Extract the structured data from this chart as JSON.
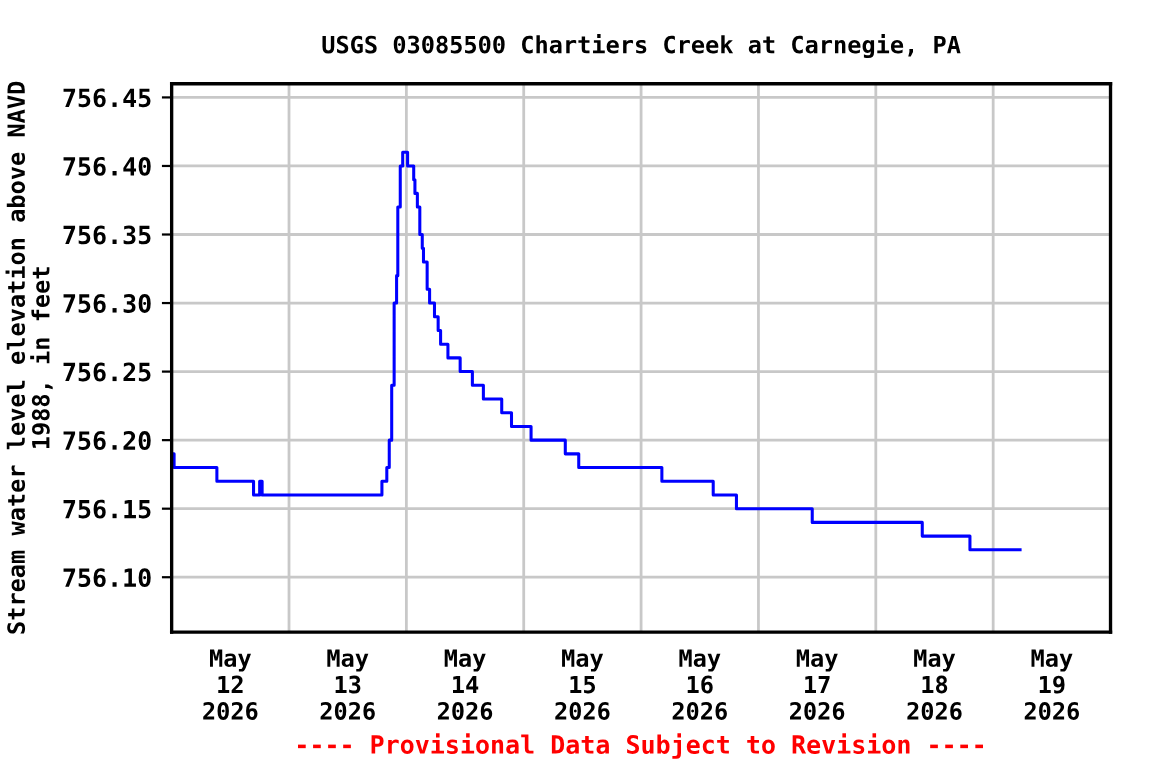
{
  "chart_data": {
    "type": "step",
    "title": "USGS 03085500 Chartiers Creek at Carnegie, PA",
    "ylabel": "Stream water level elevation above NAVD\n1988, in feet",
    "annotations": [
      "---- Provisional Data Subject to Revision ----"
    ],
    "x": [
      "2026-05-12T00:00",
      "2026-05-12T00:30",
      "2026-05-12T09:15",
      "2026-05-12T16:45",
      "2026-05-12T18:00",
      "2026-05-12T18:30",
      "2026-05-13T19:00",
      "2026-05-13T20:00",
      "2026-05-13T20:30",
      "2026-05-13T21:00",
      "2026-05-13T21:30",
      "2026-05-13T22:00",
      "2026-05-13T22:15",
      "2026-05-13T22:45",
      "2026-05-13T23:15",
      "2026-05-14T00:15",
      "2026-05-14T01:30",
      "2026-05-14T01:45",
      "2026-05-14T02:15",
      "2026-05-14T02:45",
      "2026-05-14T03:15",
      "2026-05-14T03:30",
      "2026-05-14T04:15",
      "2026-05-14T04:45",
      "2026-05-14T05:45",
      "2026-05-14T06:30",
      "2026-05-14T07:00",
      "2026-05-14T08:30",
      "2026-05-14T11:00",
      "2026-05-14T13:30",
      "2026-05-14T15:45",
      "2026-05-14T19:30",
      "2026-05-14T21:30",
      "2026-05-15T01:30",
      "2026-05-15T08:30",
      "2026-05-15T11:15",
      "2026-05-16T04:15",
      "2026-05-16T14:45",
      "2026-05-16T19:30",
      "2026-05-17T11:00",
      "2026-05-18T09:30",
      "2026-05-18T19:15",
      "2026-05-19T05:30"
    ],
    "series": [
      {
        "color": "#0000ff",
        "values": [
          756.19,
          756.18,
          756.17,
          756.16,
          756.17,
          756.16,
          756.17,
          756.18,
          756.2,
          756.24,
          756.3,
          756.32,
          756.37,
          756.4,
          756.41,
          756.4,
          756.39,
          756.38,
          756.37,
          756.35,
          756.34,
          756.33,
          756.31,
          756.3,
          756.29,
          756.28,
          756.27,
          756.26,
          756.25,
          756.24,
          756.23,
          756.22,
          756.21,
          756.2,
          756.19,
          756.18,
          756.17,
          756.16,
          756.15,
          756.14,
          756.13,
          756.12,
          756.12
        ]
      }
    ],
    "xlim": [
      "2026-05-12T00:00",
      "2026-05-20T00:00"
    ],
    "xticks": [
      {
        "value": "2026-05-12T12:00",
        "label": "May\n12\n2026"
      },
      {
        "value": "2026-05-13T00:00",
        "label": null
      },
      {
        "value": "2026-05-13T12:00",
        "label": "May\n13\n2026"
      },
      {
        "value": "2026-05-14T00:00",
        "label": null
      },
      {
        "value": "2026-05-14T12:00",
        "label": "May\n14\n2026"
      },
      {
        "value": "2026-05-15T00:00",
        "label": null
      },
      {
        "value": "2026-05-15T12:00",
        "label": "May\n15\n2026"
      },
      {
        "value": "2026-05-16T00:00",
        "label": null
      },
      {
        "value": "2026-05-16T12:00",
        "label": "May\n16\n2026"
      },
      {
        "value": "2026-05-17T00:00",
        "label": null
      },
      {
        "value": "2026-05-17T12:00",
        "label": "May\n17\n2026"
      },
      {
        "value": "2026-05-18T00:00",
        "label": null
      },
      {
        "value": "2026-05-18T12:00",
        "label": "May\n18\n2026"
      },
      {
        "value": "2026-05-19T00:00",
        "label": null
      },
      {
        "value": "2026-05-19T12:00",
        "label": "May\n19\n2026"
      }
    ],
    "ylim": [
      756.06,
      756.46
    ],
    "yticks": [
      {
        "value": 756.1,
        "label": "756.10"
      },
      {
        "value": 756.15,
        "label": "756.15"
      },
      {
        "value": 756.2,
        "label": "756.20"
      },
      {
        "value": 756.25,
        "label": "756.25"
      },
      {
        "value": 756.3,
        "label": "756.30"
      },
      {
        "value": 756.35,
        "label": "756.35"
      },
      {
        "value": 756.4,
        "label": "756.40"
      },
      {
        "value": 756.45,
        "label": "756.45"
      }
    ],
    "grid": true,
    "marker": "none",
    "line_style": "solid"
  }
}
